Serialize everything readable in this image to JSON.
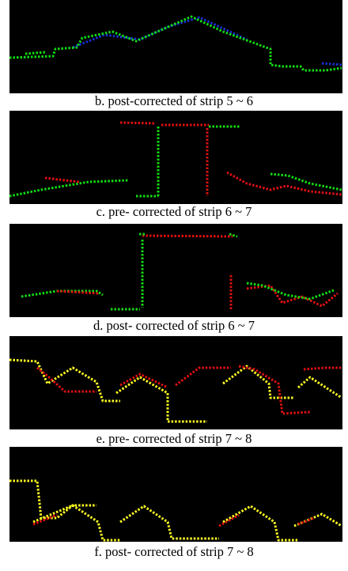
{
  "figure": {
    "panels": [
      {
        "caption": "b. post-corrected of strip 5 ~ 6"
      },
      {
        "caption": "c. pre- corrected of strip 6 ~ 7"
      },
      {
        "caption": "d. post- corrected of strip 6 ~ 7"
      },
      {
        "caption": "e. pre- corrected of strip 7 ~ 8"
      },
      {
        "caption": "f. post- corrected of strip 7 ~ 8"
      }
    ]
  }
}
